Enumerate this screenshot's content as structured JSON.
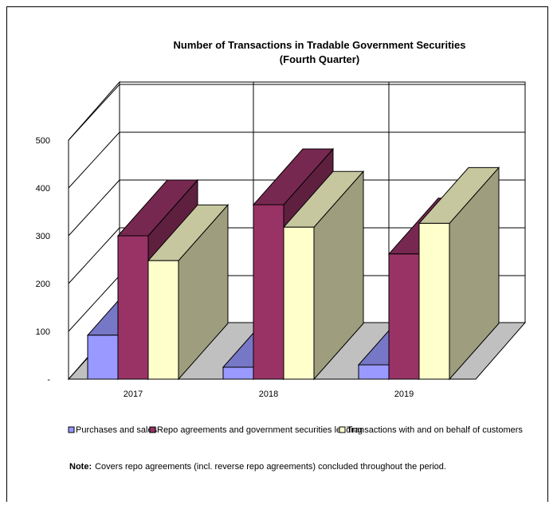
{
  "chart_data": {
    "type": "bar",
    "title": "Number of Transactions in Tradable Government Securities",
    "subtitle": "(Fourth Quarter)",
    "categories": [
      "2017",
      "2018",
      "2019"
    ],
    "series": [
      {
        "name": "Purchases and sales",
        "values": [
          92,
          25,
          30
        ]
      },
      {
        "name": "Repo agreements and government securities lending",
        "values": [
          300,
          365,
          262
        ]
      },
      {
        "name": "Transactions with and on behalf of customers",
        "values": [
          248,
          318,
          326
        ]
      }
    ],
    "colors": [
      "#9999ff",
      "#993366",
      "#ffffcc"
    ],
    "y_ticks": [
      "-",
      "100",
      "200",
      "300",
      "400",
      "500"
    ],
    "ylim": [
      0,
      500
    ],
    "grid": true,
    "legend_position": "bottom"
  },
  "note": {
    "label": "Note:",
    "text": "Covers repo agreements (incl. reverse repo agreements) concluded throughout the period."
  }
}
